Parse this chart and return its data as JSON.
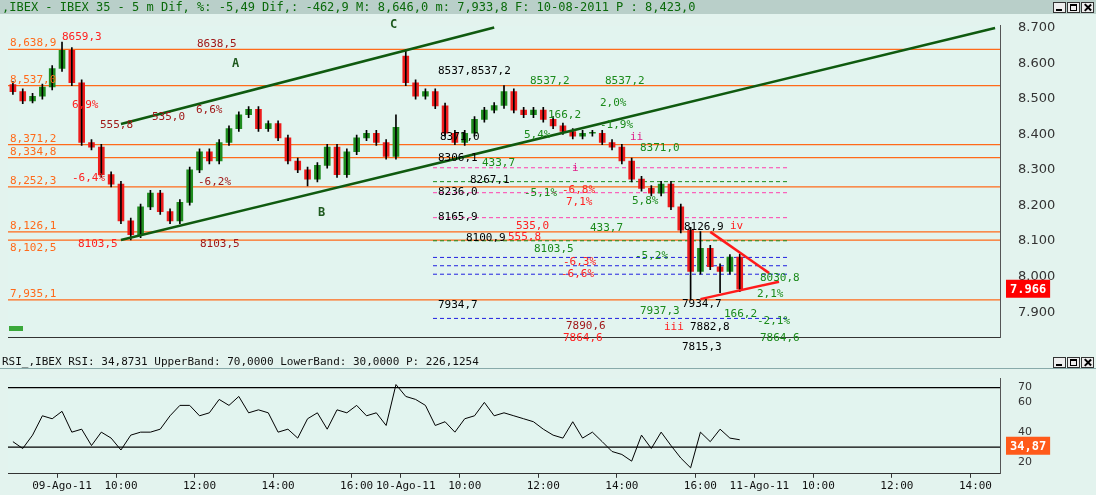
{
  "chart_data": [
    {
      "type": "candlestick",
      "title": ",IBEX - IBEX 35 -  5 m Dif, %: -5,49 Dif,: -462,9 M: 8,646,0 m: 7,933,8 F: 10-08-2011 P : 8,423,0",
      "ohlc": [
        [
          8540,
          8548,
          8512,
          8520
        ],
        [
          8520,
          8528,
          8486,
          8494
        ],
        [
          8494,
          8515,
          8488,
          8507
        ],
        [
          8507,
          8541,
          8499,
          8533
        ],
        [
          8533,
          8593,
          8525,
          8585
        ],
        [
          8585,
          8659.3,
          8577,
          8636
        ],
        [
          8636,
          8644,
          8537,
          8545
        ],
        [
          8545,
          8553,
          8369,
          8377
        ],
        [
          8377,
          8385,
          8356,
          8364
        ],
        [
          8364,
          8372,
          8279,
          8287
        ],
        [
          8287,
          8295,
          8252,
          8260
        ],
        [
          8260,
          8268,
          8149,
          8157
        ],
        [
          8157,
          8165,
          8103.5,
          8118
        ],
        [
          8118,
          8204,
          8110,
          8196
        ],
        [
          8196,
          8243,
          8188,
          8235
        ],
        [
          8235,
          8243,
          8175,
          8183
        ],
        [
          8183,
          8191,
          8149,
          8157
        ],
        [
          8157,
          8217,
          8149,
          8209
        ],
        [
          8209,
          8308,
          8201,
          8300
        ],
        [
          8300,
          8359,
          8292,
          8351
        ],
        [
          8351,
          8359,
          8317,
          8325
        ],
        [
          8325,
          8385,
          8317,
          8377
        ],
        [
          8377,
          8424,
          8369,
          8416
        ],
        [
          8416,
          8463,
          8408,
          8455
        ],
        [
          8455,
          8478,
          8447,
          8470
        ],
        [
          8470,
          8478,
          8408,
          8416
        ],
        [
          8416,
          8438,
          8408,
          8430
        ],
        [
          8430,
          8438,
          8382,
          8390
        ],
        [
          8390,
          8398,
          8317,
          8325
        ],
        [
          8325,
          8333,
          8292,
          8300
        ],
        [
          8300,
          8308,
          8255,
          8274
        ],
        [
          8274,
          8321,
          8266,
          8313
        ],
        [
          8313,
          8372,
          8305,
          8364
        ],
        [
          8364,
          8372,
          8279,
          8287
        ],
        [
          8287,
          8359,
          8279,
          8351
        ],
        [
          8351,
          8398,
          8343,
          8390
        ],
        [
          8390,
          8411,
          8382,
          8403
        ],
        [
          8403,
          8411,
          8369,
          8377
        ],
        [
          8377,
          8385,
          8330,
          8338
        ],
        [
          8338,
          8455,
          8330,
          8420
        ],
        [
          8620,
          8638.5,
          8537,
          8545
        ],
        [
          8545,
          8553,
          8499,
          8507
        ],
        [
          8507,
          8528,
          8499,
          8520
        ],
        [
          8520,
          8528,
          8472,
          8480
        ],
        [
          8480,
          8488,
          8395,
          8403
        ],
        [
          8403,
          8411,
          8371,
          8377
        ],
        [
          8377,
          8411,
          8369,
          8403
        ],
        [
          8403,
          8450,
          8395,
          8442
        ],
        [
          8442,
          8476,
          8434,
          8468
        ],
        [
          8468,
          8489,
          8460,
          8481
        ],
        [
          8481,
          8537.2,
          8473,
          8520
        ],
        [
          8520,
          8528,
          8460,
          8468
        ],
        [
          8468,
          8476,
          8447,
          8455
        ],
        [
          8455,
          8476,
          8447,
          8468
        ],
        [
          8468,
          8476,
          8434,
          8442
        ],
        [
          8442,
          8450,
          8416,
          8424
        ],
        [
          8424,
          8432,
          8400,
          8408
        ],
        [
          8408,
          8416,
          8387,
          8395
        ],
        [
          8395,
          8411,
          8387,
          8403
        ],
        [
          8403,
          8411,
          8395,
          8403
        ],
        [
          8403,
          8411,
          8371,
          8377
        ],
        [
          8377,
          8385,
          8356,
          8364
        ],
        [
          8364,
          8372,
          8317,
          8325
        ],
        [
          8325,
          8333,
          8266,
          8274
        ],
        [
          8274,
          8282,
          8240,
          8248
        ],
        [
          8248,
          8256,
          8227,
          8235
        ],
        [
          8235,
          8268,
          8227,
          8260
        ],
        [
          8260,
          8268,
          8188,
          8196
        ],
        [
          8196,
          8204,
          8123,
          8131
        ],
        [
          8131,
          8139,
          7934.7,
          8015
        ],
        [
          8015,
          8126.9,
          8007,
          8080
        ],
        [
          8080,
          8088,
          8020,
          8028
        ],
        [
          8028,
          8036,
          7955,
          8015
        ],
        [
          8015,
          8062,
          8007,
          8055
        ],
        [
          8055,
          8063,
          7958,
          7966
        ],
        null,
        null,
        null,
        null,
        null,
        null,
        null,
        null,
        null,
        null,
        null,
        null,
        null,
        null,
        null,
        null,
        null,
        null,
        null,
        null,
        null,
        null,
        null,
        null,
        null,
        null
      ],
      "series": [
        {
          "type": "line",
          "color": "#0f5a0f",
          "values": [
            null,
            null,
            null,
            null,
            null,
            null,
            null,
            null,
            null,
            null,
            null,
            8429,
            null,
            null,
            null,
            null,
            null,
            null,
            null,
            null,
            null,
            null,
            null,
            null,
            null,
            null,
            null,
            null,
            null,
            null,
            null,
            null,
            null,
            null,
            null,
            null,
            null,
            null,
            null,
            null,
            null,
            null,
            null,
            null,
            null,
            null,
            null,
            null,
            null,
            8700,
            null,
            null,
            null,
            null,
            null,
            null,
            null,
            null,
            null,
            null,
            null,
            null,
            null,
            null,
            null,
            null,
            null,
            null,
            null,
            null,
            null,
            null,
            null,
            null,
            null,
            null,
            null,
            null,
            null,
            null,
            null,
            null,
            null,
            null,
            null,
            null,
            null,
            null,
            null,
            null,
            null,
            null,
            null,
            null,
            null,
            null,
            null,
            null,
            null,
            null,
            null
          ]
        },
        {
          "type": "line",
          "color": "#0f5a0f",
          "values": [
            null,
            null,
            null,
            null,
            null,
            null,
            null,
            null,
            null,
            null,
            null,
            8103,
            null,
            null,
            null,
            null,
            null,
            null,
            null,
            null,
            null,
            null,
            null,
            null,
            null,
            null,
            null,
            null,
            null,
            null,
            null,
            null,
            null,
            null,
            null,
            null,
            null,
            null,
            null,
            null,
            null,
            null,
            null,
            null,
            null,
            null,
            null,
            null,
            null,
            null,
            null,
            null,
            null,
            null,
            null,
            null,
            null,
            null,
            null,
            null,
            null,
            null,
            null,
            null,
            null,
            null,
            null,
            null,
            null,
            null,
            null,
            null,
            null,
            null,
            null,
            null,
            null,
            null,
            null,
            null,
            null,
            null,
            null,
            null,
            null,
            null,
            null,
            null,
            null,
            null,
            null,
            null,
            null,
            null,
            null,
            null,
            null,
            null,
            null,
            null,
            8699
          ]
        },
        {
          "type": "line",
          "color": "#ff1a1a",
          "values": [
            null,
            null,
            null,
            null,
            null,
            null,
            null,
            null,
            null,
            null,
            null,
            null,
            null,
            null,
            null,
            null,
            null,
            null,
            null,
            null,
            null,
            null,
            null,
            null,
            null,
            null,
            null,
            null,
            null,
            null,
            null,
            null,
            null,
            null,
            null,
            null,
            null,
            null,
            null,
            null,
            null,
            null,
            null,
            null,
            null,
            null,
            null,
            null,
            null,
            null,
            null,
            null,
            null,
            null,
            null,
            null,
            null,
            null,
            null,
            null,
            null,
            null,
            null,
            null,
            null,
            null,
            null,
            null,
            null,
            null,
            null,
            8126,
            null,
            null,
            null,
            null,
            null,
            8010,
            null,
            null,
            null,
            null,
            null,
            null,
            null,
            null,
            null,
            null,
            null,
            null,
            null,
            null,
            null,
            null,
            null,
            null,
            null,
            null,
            null,
            null,
            null
          ]
        },
        {
          "type": "line",
          "color": "#ff1a1a",
          "values": [
            null,
            null,
            null,
            null,
            null,
            null,
            null,
            null,
            null,
            null,
            null,
            null,
            null,
            null,
            null,
            null,
            null,
            null,
            null,
            null,
            null,
            null,
            null,
            null,
            null,
            null,
            null,
            null,
            null,
            null,
            null,
            null,
            null,
            null,
            null,
            null,
            null,
            null,
            null,
            null,
            null,
            null,
            null,
            null,
            null,
            null,
            null,
            null,
            null,
            null,
            null,
            null,
            null,
            null,
            null,
            null,
            null,
            null,
            null,
            null,
            null,
            null,
            null,
            null,
            null,
            null,
            null,
            null,
            null,
            null,
            7937,
            null,
            null,
            null,
            null,
            null,
            null,
            null,
            7986,
            null,
            null,
            null,
            null,
            null,
            null,
            null,
            null,
            null,
            null,
            null,
            null,
            null,
            null,
            null,
            null,
            null,
            null,
            null,
            null,
            null,
            null
          ]
        }
      ],
      "ylim": [
        7830,
        8705
      ],
      "yticks": [
        {
          "value": 7900,
          "label": "7.900"
        },
        {
          "value": 8000,
          "label": "8.000"
        },
        {
          "value": 8100,
          "label": "8.100"
        },
        {
          "value": 8200,
          "label": "8.200"
        },
        {
          "value": 8300,
          "label": "8.300"
        },
        {
          "value": 8400,
          "label": "8.400"
        },
        {
          "value": 8500,
          "label": "8.500"
        },
        {
          "value": 8600,
          "label": "8.600"
        },
        {
          "value": 8700,
          "label": "8.700"
        }
      ],
      "ref_lines": [
        {
          "axis": "y",
          "value": 8638.9,
          "label": "8,638,9",
          "color": "#ff6a1a"
        },
        {
          "axis": "y",
          "value": 8537.0,
          "label": "8,537,0",
          "color": "#ff6a1a"
        },
        {
          "axis": "y",
          "value": 8371.2,
          "label": "8,371,2",
          "color": "#ff6a1a"
        },
        {
          "axis": "y",
          "value": 8334.8,
          "label": "8,334,8",
          "color": "#ff6a1a"
        },
        {
          "axis": "y",
          "value": 8252.3,
          "label": "8,252,3",
          "color": "#ff6a1a"
        },
        {
          "axis": "y",
          "value": 8126.1,
          "label": "8,126,1",
          "color": "#ff6a1a"
        },
        {
          "axis": "y",
          "value": 8102.5,
          "label": "8,102,5",
          "color": "#ff6a1a"
        },
        {
          "axis": "y",
          "value": 7935.1,
          "label": "7,935,1",
          "color": "#ff6a1a"
        },
        {
          "axis": "y",
          "value": 8306.1,
          "color": "#ff3fae",
          "line_style": "dashed"
        },
        {
          "axis": "y",
          "value": 8236.0,
          "color": "#ff3fae",
          "line_style": "dashed"
        },
        {
          "axis": "y",
          "value": 8165.9,
          "color": "#ff3fae",
          "line_style": "dashed"
        },
        {
          "axis": "y",
          "value": 8267.1,
          "color": "#1a8a1a",
          "line_style": "dashed"
        },
        {
          "axis": "y",
          "value": 8100.9,
          "color": "#1a8a1a",
          "line_style": "dashed"
        },
        {
          "axis": "y",
          "value": 8054.2,
          "color": "#2020e0",
          "line_style": "dashed"
        },
        {
          "axis": "y",
          "value": 8030.8,
          "color": "#2020e0",
          "line_style": "dashed"
        },
        {
          "axis": "y",
          "value": 8007.0,
          "color": "#2020e0",
          "line_style": "dashed"
        },
        {
          "axis": "y",
          "value": 7882.8,
          "color": "#2020e0",
          "line_style": "dashed"
        }
      ],
      "annotations": [
        "8659,3",
        "8638,5",
        "A",
        "C",
        "B",
        "6,9%",
        "6,6%",
        "-6,4%",
        "-6,2%",
        "555,8",
        "535,0",
        "8103,5",
        "8103,5",
        "8537,8537,2",
        "8537,2",
        "8537,2",
        "2,0%",
        "166,2",
        "-1,9%",
        "8371,0",
        "5,4%",
        "ii",
        "8371,0",
        "8306,1",
        "433,7",
        "i",
        "8267,1",
        "8236,0",
        "-5,1%",
        "-6,8%",
        "7,1%",
        "5,8%",
        "8165,9",
        "535,0",
        "433,7",
        "555,8",
        "8100,9",
        "8103,5",
        "8126,9",
        "iv",
        "-5,2%",
        "-6,3%",
        "-6,6%",
        "8030,8",
        "2,1%",
        "7934,7",
        "7934,7",
        "7937,3",
        "166,2",
        "-2,1%",
        "iii",
        "7882,8",
        "7890,6",
        "7864,6",
        "7864,6",
        "7815,3",
        "7.966"
      ],
      "tick_labels": "y"
    },
    {
      "type": "line",
      "title": "RSI_,IBEX RSI: 34,8731 UpperBand: 70,0000 LowerBand: 30,0000 P: 226,1254",
      "categories": [
        null,
        null,
        null,
        null,
        null,
        "09-Ago-11",
        null,
        null,
        null,
        null,
        null,
        "10:00",
        null,
        null,
        null,
        null,
        null,
        null,
        null,
        "12:00",
        null,
        null,
        null,
        null,
        null,
        null,
        null,
        "14:00",
        null,
        null,
        null,
        null,
        null,
        null,
        null,
        "16:00",
        null,
        null,
        null,
        null,
        "10-Ago-11",
        null,
        null,
        null,
        null,
        null,
        "10:00",
        null,
        null,
        null,
        null,
        null,
        null,
        null,
        "12:00",
        null,
        null,
        null,
        null,
        null,
        null,
        null,
        "14:00",
        null,
        null,
        null,
        null,
        null,
        null,
        null,
        "16:00",
        null,
        null,
        null,
        null,
        null,
        "11-Ago-11",
        null,
        null,
        null,
        null,
        null,
        "10:00",
        null,
        null,
        null,
        null,
        null,
        null,
        null,
        "12:00",
        null,
        null,
        null,
        null,
        null,
        null,
        null,
        "14:00",
        null,
        null
      ],
      "series": [
        {
          "color": "#000000",
          "values": [
            33.6,
            29,
            38,
            51,
            49,
            54,
            40,
            42,
            31,
            40,
            36,
            28,
            38,
            40,
            40,
            42,
            51,
            58,
            58,
            51,
            53,
            62,
            58,
            64,
            53,
            55,
            53,
            40,
            42,
            36,
            49,
            53,
            42,
            55,
            53,
            58,
            51,
            53,
            44.5,
            72,
            64,
            62,
            58,
            44.5,
            47,
            40,
            49,
            51,
            60,
            51,
            53,
            51,
            49,
            47,
            42,
            38,
            36,
            47,
            36,
            40,
            33.6,
            27,
            25,
            20.5,
            38,
            29,
            40,
            31,
            22.6,
            16,
            40,
            33.6,
            42,
            36,
            34.9,
            null,
            null,
            null,
            null,
            null,
            null,
            null,
            null,
            null,
            null,
            null,
            null,
            null,
            null,
            null,
            null,
            null,
            null,
            null,
            null,
            null,
            null,
            null,
            null,
            null,
            null
          ]
        }
      ],
      "ylim": [
        12,
        76
      ],
      "yticks": [
        20,
        40,
        60,
        70
      ],
      "ref_lines": [
        {
          "axis": "y",
          "value": 70,
          "color": "#000000"
        },
        {
          "axis": "y",
          "value": 30,
          "color": "#000000"
        }
      ],
      "annotations": [
        "34,87"
      ]
    }
  ]
}
